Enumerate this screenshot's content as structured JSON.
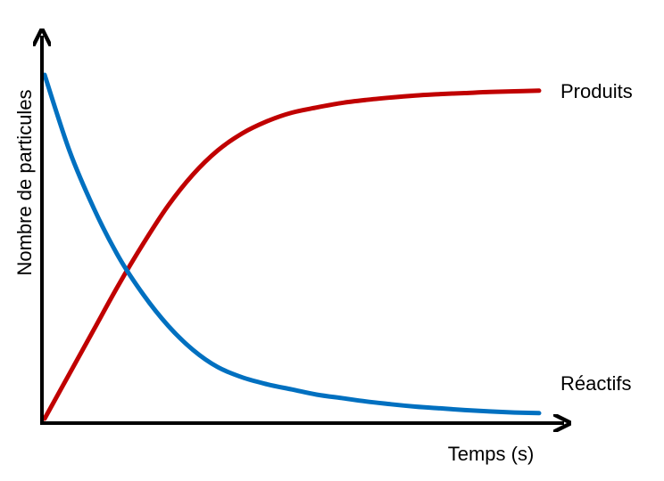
{
  "chart_data": {
    "type": "line",
    "title": "",
    "xlabel": "Temps (s)",
    "ylabel": "Nombre de particules",
    "xlim": [
      0,
      1
    ],
    "ylim": [
      0,
      1
    ],
    "grid": false,
    "legend": "none",
    "series": [
      {
        "name": "Produits",
        "color": "#c00000",
        "x": [
          0,
          0.05,
          0.1,
          0.15,
          0.2,
          0.25,
          0.3,
          0.35,
          0.4,
          0.45,
          0.5,
          0.55,
          0.6,
          0.65,
          0.7,
          0.75,
          0.8,
          0.85,
          0.9,
          0.95,
          1.0
        ],
        "y": [
          0.0,
          0.13,
          0.26,
          0.39,
          0.51,
          0.62,
          0.71,
          0.78,
          0.83,
          0.865,
          0.89,
          0.905,
          0.918,
          0.927,
          0.934,
          0.94,
          0.944,
          0.947,
          0.95,
          0.952,
          0.954
        ]
      },
      {
        "name": "Réactifs",
        "color": "#0070c0",
        "x": [
          0,
          0.05,
          0.1,
          0.15,
          0.2,
          0.25,
          0.3,
          0.35,
          0.4,
          0.45,
          0.5,
          0.55,
          0.6,
          0.65,
          0.7,
          0.75,
          0.8,
          0.85,
          0.9,
          0.95,
          1.0
        ],
        "y": [
          1.0,
          0.78,
          0.61,
          0.47,
          0.36,
          0.27,
          0.2,
          0.15,
          0.12,
          0.1,
          0.085,
          0.07,
          0.06,
          0.05,
          0.042,
          0.035,
          0.03,
          0.025,
          0.021,
          0.018,
          0.016
        ]
      }
    ]
  }
}
